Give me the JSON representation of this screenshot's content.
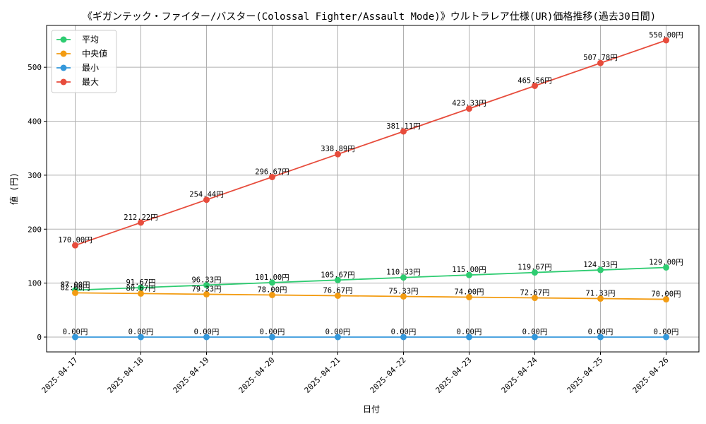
{
  "chart_data": {
    "type": "line",
    "title": "《ギガンテック・ファイター/バスター(Colossal Fighter/Assault Mode)》ウルトラレア仕様(UR)価格推移(過去30日間)",
    "xlabel": "日付",
    "ylabel": "値 (円)",
    "categories": [
      "2025-04-17",
      "2025-04-18",
      "2025-04-19",
      "2025-04-20",
      "2025-04-21",
      "2025-04-22",
      "2025-04-23",
      "2025-04-24",
      "2025-04-25",
      "2025-04-26"
    ],
    "ylim": [
      -27.5,
      577.5
    ],
    "yticks": [
      0,
      100,
      200,
      300,
      400,
      500
    ],
    "grid": true,
    "legend_position": "top-left",
    "series": [
      {
        "name": "平均",
        "color": "#2ecc71",
        "values": [
          87.0,
          91.67,
          96.33,
          101.0,
          105.67,
          110.33,
          115.0,
          119.67,
          124.33,
          129.0
        ],
        "labels": [
          "87.00円",
          "91.67円",
          "96.33円",
          "101.00円",
          "105.67円",
          "110.33円",
          "115.00円",
          "119.67円",
          "124.33円",
          "129.00円"
        ]
      },
      {
        "name": "中央値",
        "color": "#f39c12",
        "values": [
          82.0,
          80.67,
          79.33,
          78.0,
          76.67,
          75.33,
          74.0,
          72.67,
          71.33,
          70.0
        ],
        "labels": [
          "82.00円",
          "80.67円",
          "79.33円",
          "78.00円",
          "76.67円",
          "75.33円",
          "74.00円",
          "72.67円",
          "71.33円",
          "70.00円"
        ]
      },
      {
        "name": "最小",
        "color": "#3498db",
        "values": [
          0,
          0,
          0,
          0,
          0,
          0,
          0,
          0,
          0,
          0
        ],
        "labels": [
          "0.00円",
          "0.00円",
          "0.00円",
          "0.00円",
          "0.00円",
          "0.00円",
          "0.00円",
          "0.00円",
          "0.00円",
          "0.00円"
        ]
      },
      {
        "name": "最大",
        "color": "#e74c3c",
        "values": [
          170.0,
          212.22,
          254.44,
          296.67,
          338.89,
          381.11,
          423.33,
          465.56,
          507.78,
          550.0
        ],
        "labels": [
          "170.00円",
          "212.22円",
          "254.44円",
          "296.67円",
          "338.89円",
          "381.11円",
          "423.33円",
          "465.56円",
          "507.78円",
          "550.00円"
        ]
      }
    ]
  }
}
